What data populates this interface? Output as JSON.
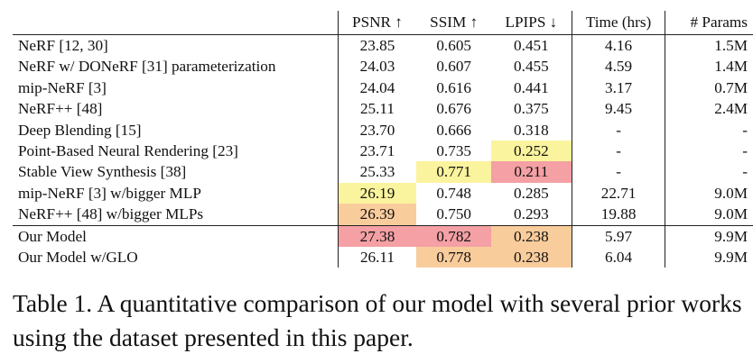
{
  "table": {
    "columns": [
      "",
      "PSNR ↑",
      "SSIM ↑",
      "LPIPS ↓",
      "Time (hrs)",
      "# Params"
    ],
    "highlight_colors": {
      "first": "#f4a0a4",
      "second": "#f9cc9c",
      "third": "#fbf49e"
    },
    "rows": [
      {
        "method": "NeRF [12, 30]",
        "psnr": "23.85",
        "ssim": "0.605",
        "lpips": "0.451",
        "time": "4.16",
        "params": "1.5M",
        "hl": {}
      },
      {
        "method": "NeRF w/ DONeRF [31] parameterization",
        "psnr": "24.03",
        "ssim": "0.607",
        "lpips": "0.455",
        "time": "4.59",
        "params": "1.4M",
        "hl": {}
      },
      {
        "method": "mip-NeRF [3]",
        "psnr": "24.04",
        "ssim": "0.616",
        "lpips": "0.441",
        "time": "3.17",
        "params": "0.7M",
        "hl": {}
      },
      {
        "method": "NeRF++ [48]",
        "psnr": "25.11",
        "ssim": "0.676",
        "lpips": "0.375",
        "time": "9.45",
        "params": "2.4M",
        "hl": {}
      },
      {
        "method": "Deep Blending [15]",
        "psnr": "23.70",
        "ssim": "0.666",
        "lpips": "0.318",
        "time": "-",
        "params": "-",
        "hl": {}
      },
      {
        "method": "Point-Based Neural Rendering [23]",
        "psnr": "23.71",
        "ssim": "0.735",
        "lpips": "0.252",
        "time": "-",
        "params": "-",
        "hl": {
          "lpips": "third"
        }
      },
      {
        "method": "Stable View Synthesis [38]",
        "psnr": "25.33",
        "ssim": "0.771",
        "lpips": "0.211",
        "time": "-",
        "params": "-",
        "hl": {
          "ssim": "third",
          "lpips": "first"
        }
      },
      {
        "method": "mip-NeRF [3] w/bigger MLP",
        "psnr": "26.19",
        "ssim": "0.748",
        "lpips": "0.285",
        "time": "22.71",
        "params": "9.0M",
        "hl": {
          "psnr": "third"
        }
      },
      {
        "method": "NeRF++ [48] w/bigger MLPs",
        "psnr": "26.39",
        "ssim": "0.750",
        "lpips": "0.293",
        "time": "19.88",
        "params": "9.0M",
        "hl": {
          "psnr": "second"
        }
      },
      {
        "method": "Our Model",
        "psnr": "27.38",
        "ssim": "0.782",
        "lpips": "0.238",
        "time": "5.97",
        "params": "9.9M",
        "hl": {
          "psnr": "first",
          "ssim": "first",
          "lpips": "second"
        },
        "group_break": true
      },
      {
        "method": "Our Model w/GLO",
        "psnr": "26.11",
        "ssim": "0.778",
        "lpips": "0.238",
        "time": "6.04",
        "params": "9.9M",
        "hl": {
          "ssim": "second",
          "lpips": "second"
        }
      }
    ]
  },
  "caption": "Table 1. A quantitative comparison of our model with several prior works using the dataset presented in this paper."
}
